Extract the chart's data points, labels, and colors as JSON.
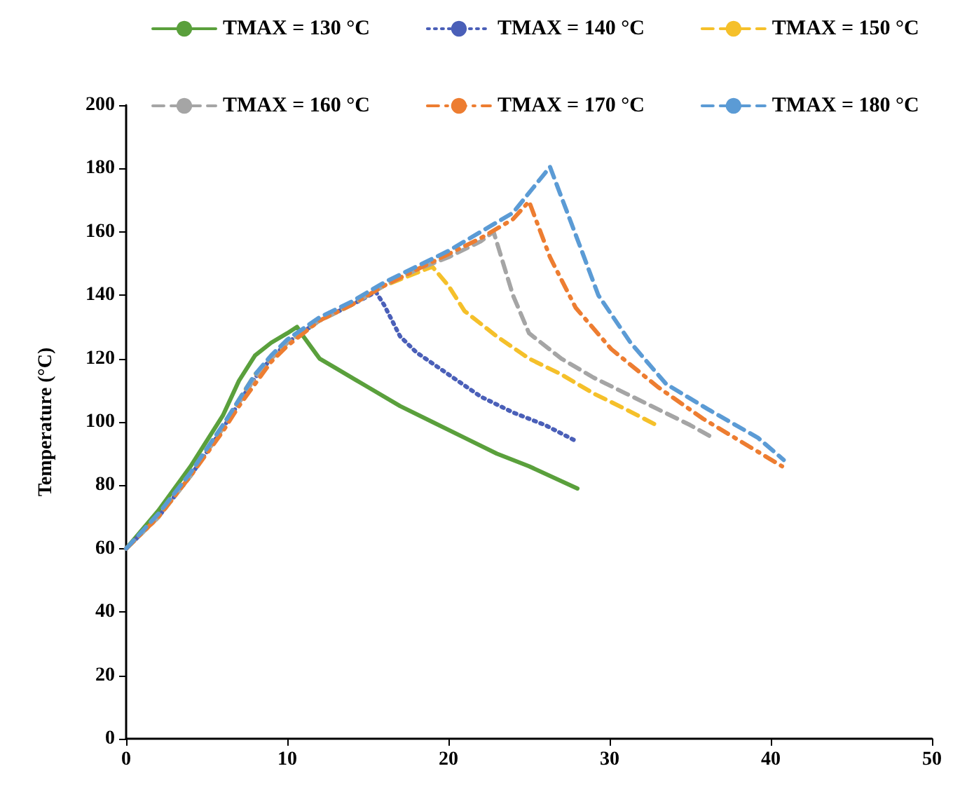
{
  "chart_data": {
    "type": "line",
    "ylabel": "Temperature (°C)",
    "xlim": [
      0,
      50
    ],
    "xticks": [
      0,
      10,
      20,
      30,
      40,
      50
    ],
    "ylim": [
      0,
      200
    ],
    "yticks": [
      0,
      20,
      40,
      60,
      80,
      100,
      120,
      140,
      160,
      180,
      200
    ],
    "grid": false,
    "legend": "top",
    "marker": "none",
    "series": [
      {
        "name": "TMAX = 130 °C",
        "color": "#5aa03c",
        "line_style": "solid",
        "x": [
          0,
          2,
          4,
          6,
          7,
          8,
          9,
          10,
          10.6,
          11,
          12,
          13,
          15,
          17,
          19,
          21,
          23,
          25,
          28
        ],
        "values": [
          60,
          72,
          86,
          102,
          113,
          121,
          125,
          128,
          130,
          127,
          120,
          117,
          111,
          105,
          100,
          95,
          90,
          86,
          79
        ]
      },
      {
        "name": "TMAX = 140 °C",
        "color": "#4a5fb8",
        "line_style": "dotted",
        "x": [
          0,
          2,
          4,
          6,
          7,
          8,
          9,
          10,
          12,
          14,
          15.5,
          16,
          17,
          18,
          20,
          22,
          24,
          26,
          27.9
        ],
        "values": [
          60,
          70,
          83,
          98,
          106,
          114,
          120,
          125,
          132,
          137,
          141,
          137,
          127,
          122,
          115,
          108,
          103,
          99,
          94
        ]
      },
      {
        "name": "TMAX = 150 °C",
        "color": "#f5c02a",
        "line_style": "dashed",
        "x": [
          0,
          2,
          4,
          6,
          7,
          8,
          9,
          10,
          12,
          14,
          16,
          18,
          19,
          20,
          21,
          23,
          25,
          27,
          29,
          31,
          32.9
        ],
        "values": [
          60,
          70,
          83,
          98,
          107,
          115,
          120,
          125,
          132,
          137,
          143,
          147,
          149,
          143,
          135,
          127,
          120,
          115,
          109,
          104,
          99
        ]
      },
      {
        "name": "TMAX = 160 °C",
        "color": "#a5a5a5",
        "line_style": "dashed",
        "x": [
          0,
          2,
          4,
          6,
          7,
          8,
          9,
          10,
          12,
          14,
          16,
          18,
          20,
          22,
          22.8,
          24,
          25,
          27,
          29,
          31,
          33,
          35,
          36.4
        ],
        "values": [
          60,
          70,
          83,
          98,
          106,
          114,
          120,
          125,
          132,
          137,
          143,
          148,
          152,
          157,
          160,
          140,
          128,
          120,
          114,
          109,
          104,
          99,
          95
        ]
      },
      {
        "name": "TMAX = 170 °C",
        "color": "#ed7d31",
        "line_style": "dashdot",
        "x": [
          0,
          2,
          4,
          6,
          7,
          8,
          9,
          10,
          12,
          14,
          16,
          18,
          20,
          22,
          24,
          25,
          26.3,
          27.9,
          30.1,
          33,
          35.8,
          40.7
        ],
        "values": [
          60,
          70,
          83,
          97,
          105,
          112,
          119,
          124,
          132,
          137,
          143,
          148,
          153,
          158,
          164,
          169.6,
          152,
          136,
          123,
          111,
          101,
          86
        ]
      },
      {
        "name": "TMAX = 180 °C",
        "color": "#5b9bd5",
        "line_style": "dashed",
        "x": [
          0,
          2,
          4,
          6,
          7,
          8,
          9,
          10,
          12,
          14,
          16,
          18,
          20,
          22,
          24,
          26.3,
          27.9,
          29.3,
          31.3,
          33.5,
          36.1,
          39.2,
          40.8
        ],
        "values": [
          60,
          71,
          84,
          99,
          107,
          115,
          121,
          126,
          133,
          138,
          144,
          149,
          154,
          160,
          166,
          180.5,
          159,
          140,
          125,
          112,
          104,
          95,
          88
        ]
      }
    ]
  }
}
